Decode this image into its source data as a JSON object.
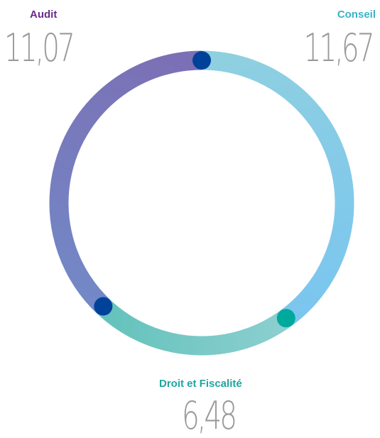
{
  "chart_data": {
    "type": "donut",
    "title": "",
    "segments": [
      {
        "name": "Conseil",
        "value": 11.67,
        "display": "11,67",
        "color_start": "#8fd0e0",
        "color_end": "#7bc6ef",
        "label_color": "#3ab4c6"
      },
      {
        "name": "Droit et Fiscalité",
        "value": 6.48,
        "display": "6,48",
        "color_start": "#8ccfd0",
        "color_end": "#63c2bb",
        "label_color": "#1ea6a0"
      },
      {
        "name": "Audit",
        "value": 11.07,
        "display": "11,07",
        "color_start": "#7388c6",
        "color_end": "#7b6fb5",
        "label_color": "#6b2a8a"
      }
    ],
    "separator_colors": [
      "#00429a",
      "#00a99d",
      "#00429a"
    ]
  }
}
